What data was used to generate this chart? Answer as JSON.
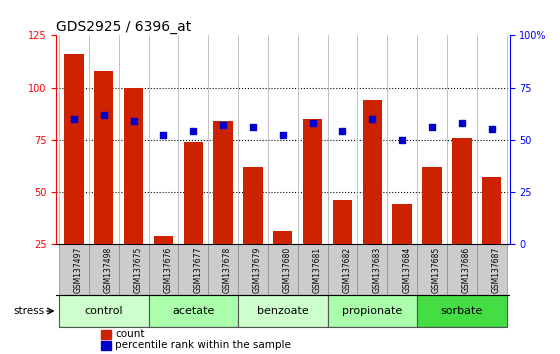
{
  "title": "GDS2925 / 6396_at",
  "samples": [
    "GSM137497",
    "GSM137498",
    "GSM137675",
    "GSM137676",
    "GSM137677",
    "GSM137678",
    "GSM137679",
    "GSM137680",
    "GSM137681",
    "GSM137682",
    "GSM137683",
    "GSM137684",
    "GSM137685",
    "GSM137686",
    "GSM137687"
  ],
  "counts": [
    116,
    108,
    100,
    29,
    74,
    84,
    62,
    31,
    85,
    46,
    94,
    44,
    62,
    76,
    57
  ],
  "percentiles": [
    60,
    62,
    59,
    52,
    54,
    57,
    56,
    52,
    58,
    54,
    60,
    50,
    56,
    58,
    55
  ],
  "bar_color": "#cc2200",
  "dot_color": "#0000cc",
  "ylim_left": [
    25,
    125
  ],
  "ylim_right": [
    0,
    100
  ],
  "yticks_left": [
    25,
    50,
    75,
    100,
    125
  ],
  "ytick_labels_left": [
    "25",
    "50",
    "75",
    "100",
    "125"
  ],
  "yticks_right": [
    0,
    25,
    50,
    75,
    100
  ],
  "ytick_labels_right": [
    "0",
    "25",
    "50",
    "75",
    "100%"
  ],
  "grid_lines_at": [
    50,
    75,
    100
  ],
  "groups": [
    {
      "label": "control",
      "start": 0,
      "end": 2,
      "color": "#ccffcc"
    },
    {
      "label": "acetate",
      "start": 3,
      "end": 5,
      "color": "#aaffaa"
    },
    {
      "label": "benzoate",
      "start": 6,
      "end": 8,
      "color": "#ccffcc"
    },
    {
      "label": "propionate",
      "start": 9,
      "end": 11,
      "color": "#aaffaa"
    },
    {
      "label": "sorbate",
      "start": 12,
      "end": 14,
      "color": "#44dd44"
    }
  ],
  "stress_label": "stress",
  "legend_count_label": "count",
  "legend_pct_label": "percentile rank within the sample",
  "background_color": "#ffffff",
  "xticklabel_bg": "#cccccc",
  "title_fontsize": 10,
  "tick_fontsize": 7,
  "sample_fontsize": 5.5,
  "group_fontsize": 8,
  "legend_fontsize": 7.5
}
